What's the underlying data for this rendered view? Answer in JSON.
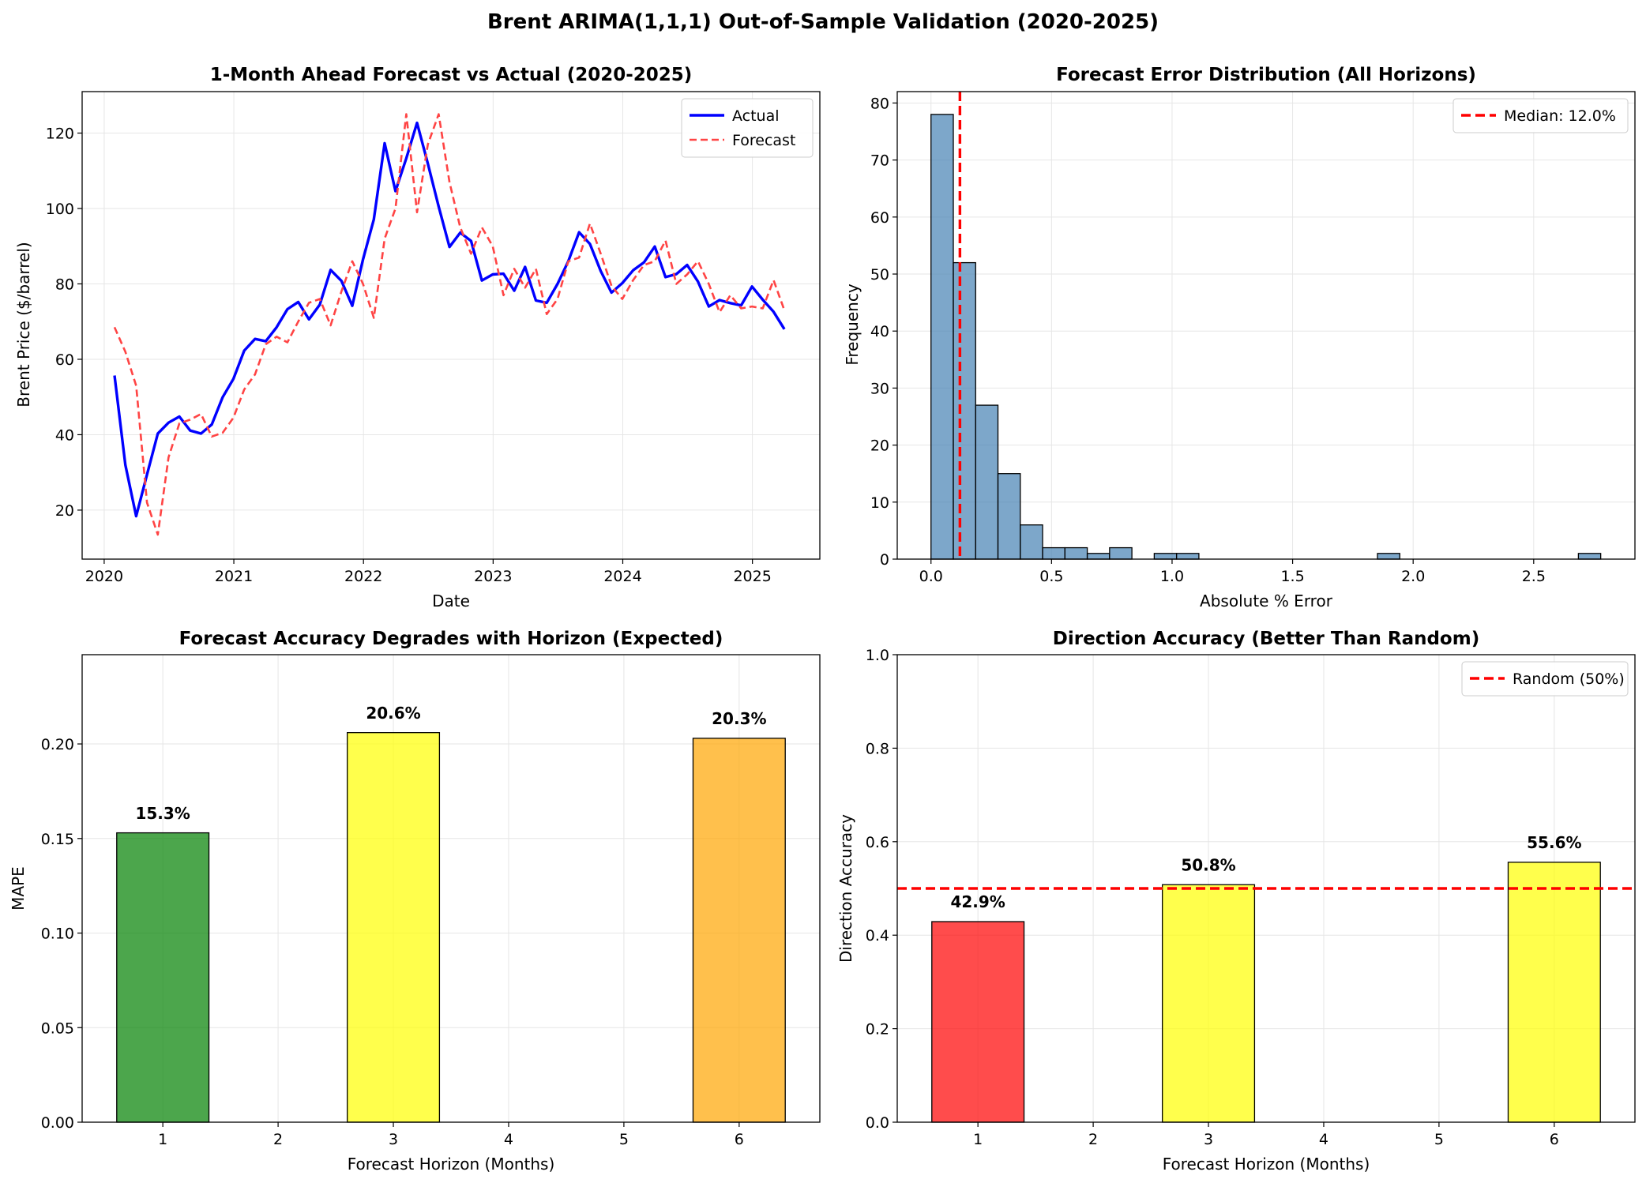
{
  "figure": {
    "title": "Brent ARIMA(1,1,1) Out-of-Sample Validation (2020-2025)"
  },
  "chart_data": [
    {
      "type": "line",
      "title": "1-Month Ahead Forecast vs Actual (2020-2025)",
      "xlabel": "Date",
      "ylabel": "Brent Price ($/barrel)",
      "xlim": [
        2019.83,
        2025.52
      ],
      "ylim": [
        7,
        131
      ],
      "xticks": [
        2020,
        2021,
        2022,
        2023,
        2024,
        2025
      ],
      "yticks": [
        20,
        40,
        60,
        80,
        100,
        120
      ],
      "xtick_labels": [
        "2020",
        "2021",
        "2022",
        "2023",
        "2024",
        "2025"
      ],
      "ytick_labels": [
        "20",
        "40",
        "60",
        "80",
        "100",
        "120"
      ],
      "grid": true,
      "legend": "top-right",
      "x_start": 2020.08,
      "x_step": 0.08333,
      "series": [
        {
          "name": "Actual",
          "color": "#0000ff",
          "style": "solid",
          "values": [
            55.7,
            32.0,
            18.4,
            29.4,
            40.3,
            43.2,
            44.8,
            41.1,
            40.3,
            42.7,
            49.9,
            54.8,
            62.3,
            65.4,
            64.8,
            68.5,
            73.3,
            75.2,
            70.6,
            74.5,
            83.7,
            80.8,
            74.2,
            86.5,
            97.1,
            117.3,
            104.6,
            113.3,
            122.7,
            111.9,
            100.5,
            89.8,
            93.6,
            91.4,
            80.9,
            82.5,
            82.7,
            78.2,
            84.5,
            75.6,
            75.0,
            80.0,
            86.0,
            93.7,
            90.6,
            83.4,
            77.7,
            80.2,
            83.6,
            85.7,
            89.9,
            81.8,
            82.6,
            85.0,
            80.6,
            74.0,
            75.7,
            74.9,
            74.3,
            79.3,
            75.8,
            72.6,
            68.0
          ]
        },
        {
          "name": "Forecast",
          "color": "#ff4444",
          "style": "dashed",
          "values": [
            68.5,
            62.0,
            53.0,
            22.0,
            13.5,
            34.0,
            43.0,
            44.0,
            45.5,
            39.5,
            40.5,
            44.5,
            52.0,
            56.0,
            64.0,
            66.0,
            64.5,
            70.0,
            75.0,
            76.0,
            69.0,
            78.0,
            86.0,
            80.0,
            71.0,
            92.0,
            100.0,
            125.0,
            99.0,
            117.0,
            125.0,
            107.0,
            95.0,
            88.0,
            95.0,
            90.0,
            77.0,
            84.0,
            79.0,
            84.0,
            72.0,
            76.0,
            86.0,
            87.0,
            96.0,
            88.0,
            79.5,
            76.0,
            81.0,
            85.0,
            86.0,
            91.5,
            80.0,
            82.5,
            86.0,
            80.0,
            72.5,
            77.0,
            73.5,
            74.0,
            73.5,
            81.0,
            73.0
          ]
        }
      ]
    },
    {
      "type": "histogram",
      "title": "Forecast Error Distribution (All Horizons)",
      "xlabel": "Absolute % Error",
      "ylabel": "Frequency",
      "xlim": [
        -0.14,
        2.92
      ],
      "ylim": [
        0,
        82
      ],
      "xticks": [
        0.0,
        0.5,
        1.0,
        1.5,
        2.0,
        2.5
      ],
      "yticks": [
        0,
        10,
        20,
        30,
        40,
        50,
        60,
        70,
        80
      ],
      "xtick_labels": [
        "0.0",
        "0.5",
        "1.0",
        "1.5",
        "2.0",
        "2.5"
      ],
      "ytick_labels": [
        "0",
        "10",
        "20",
        "30",
        "40",
        "50",
        "60",
        "70",
        "80"
      ],
      "grid": true,
      "legend": "top-right",
      "bin_start": 0.0,
      "bin_width": 0.0926,
      "counts": [
        78,
        52,
        27,
        15,
        6,
        2,
        2,
        1,
        2,
        0,
        1,
        1,
        0,
        0,
        0,
        0,
        0,
        0,
        0,
        0,
        1,
        0,
        0,
        0,
        0,
        0,
        0,
        0,
        0,
        1
      ],
      "bar_color": "#4682b4",
      "median": 0.12,
      "median_label": "Median: 12.0%",
      "median_color": "#ff0000"
    },
    {
      "type": "bar",
      "title": "Forecast Accuracy Degrades with Horizon (Expected)",
      "xlabel": "Forecast Horizon (Months)",
      "ylabel": "MAPE",
      "xlim": [
        0.3,
        6.7
      ],
      "ylim": [
        0,
        0.2472
      ],
      "xticks": [
        1,
        2,
        3,
        4,
        5,
        6
      ],
      "yticks": [
        0.0,
        0.05,
        0.1,
        0.15,
        0.2
      ],
      "xtick_labels": [
        "1",
        "2",
        "3",
        "4",
        "5",
        "6"
      ],
      "ytick_labels": [
        "0.00",
        "0.05",
        "0.10",
        "0.15",
        "0.20"
      ],
      "grid": true,
      "bar_width": 0.8,
      "bars": [
        {
          "x": 1,
          "value": 0.153,
          "label": "15.3%",
          "color": "#008000"
        },
        {
          "x": 3,
          "value": 0.206,
          "label": "20.6%",
          "color": "#ffff00"
        },
        {
          "x": 6,
          "value": 0.203,
          "label": "20.3%",
          "color": "#ffa500"
        }
      ]
    },
    {
      "type": "bar",
      "title": "Direction Accuracy (Better Than Random)",
      "xlabel": "Forecast Horizon (Months)",
      "ylabel": "Direction Accuracy",
      "xlim": [
        0.3,
        6.7
      ],
      "ylim": [
        0,
        1.0
      ],
      "xticks": [
        1,
        2,
        3,
        4,
        5,
        6
      ],
      "yticks": [
        0.0,
        0.2,
        0.4,
        0.6,
        0.8,
        1.0
      ],
      "xtick_labels": [
        "1",
        "2",
        "3",
        "4",
        "5",
        "6"
      ],
      "ytick_labels": [
        "0.0",
        "0.2",
        "0.4",
        "0.6",
        "0.8",
        "1.0"
      ],
      "grid": true,
      "legend": "top-right",
      "bar_width": 0.8,
      "bars": [
        {
          "x": 1,
          "value": 0.429,
          "label": "42.9%",
          "color": "#ff0000"
        },
        {
          "x": 3,
          "value": 0.508,
          "label": "50.8%",
          "color": "#ffff00"
        },
        {
          "x": 6,
          "value": 0.556,
          "label": "55.6%",
          "color": "#ffff00"
        }
      ],
      "reference_line": {
        "value": 0.5,
        "label": "Random (50%)",
        "color": "#ff0000"
      }
    }
  ]
}
